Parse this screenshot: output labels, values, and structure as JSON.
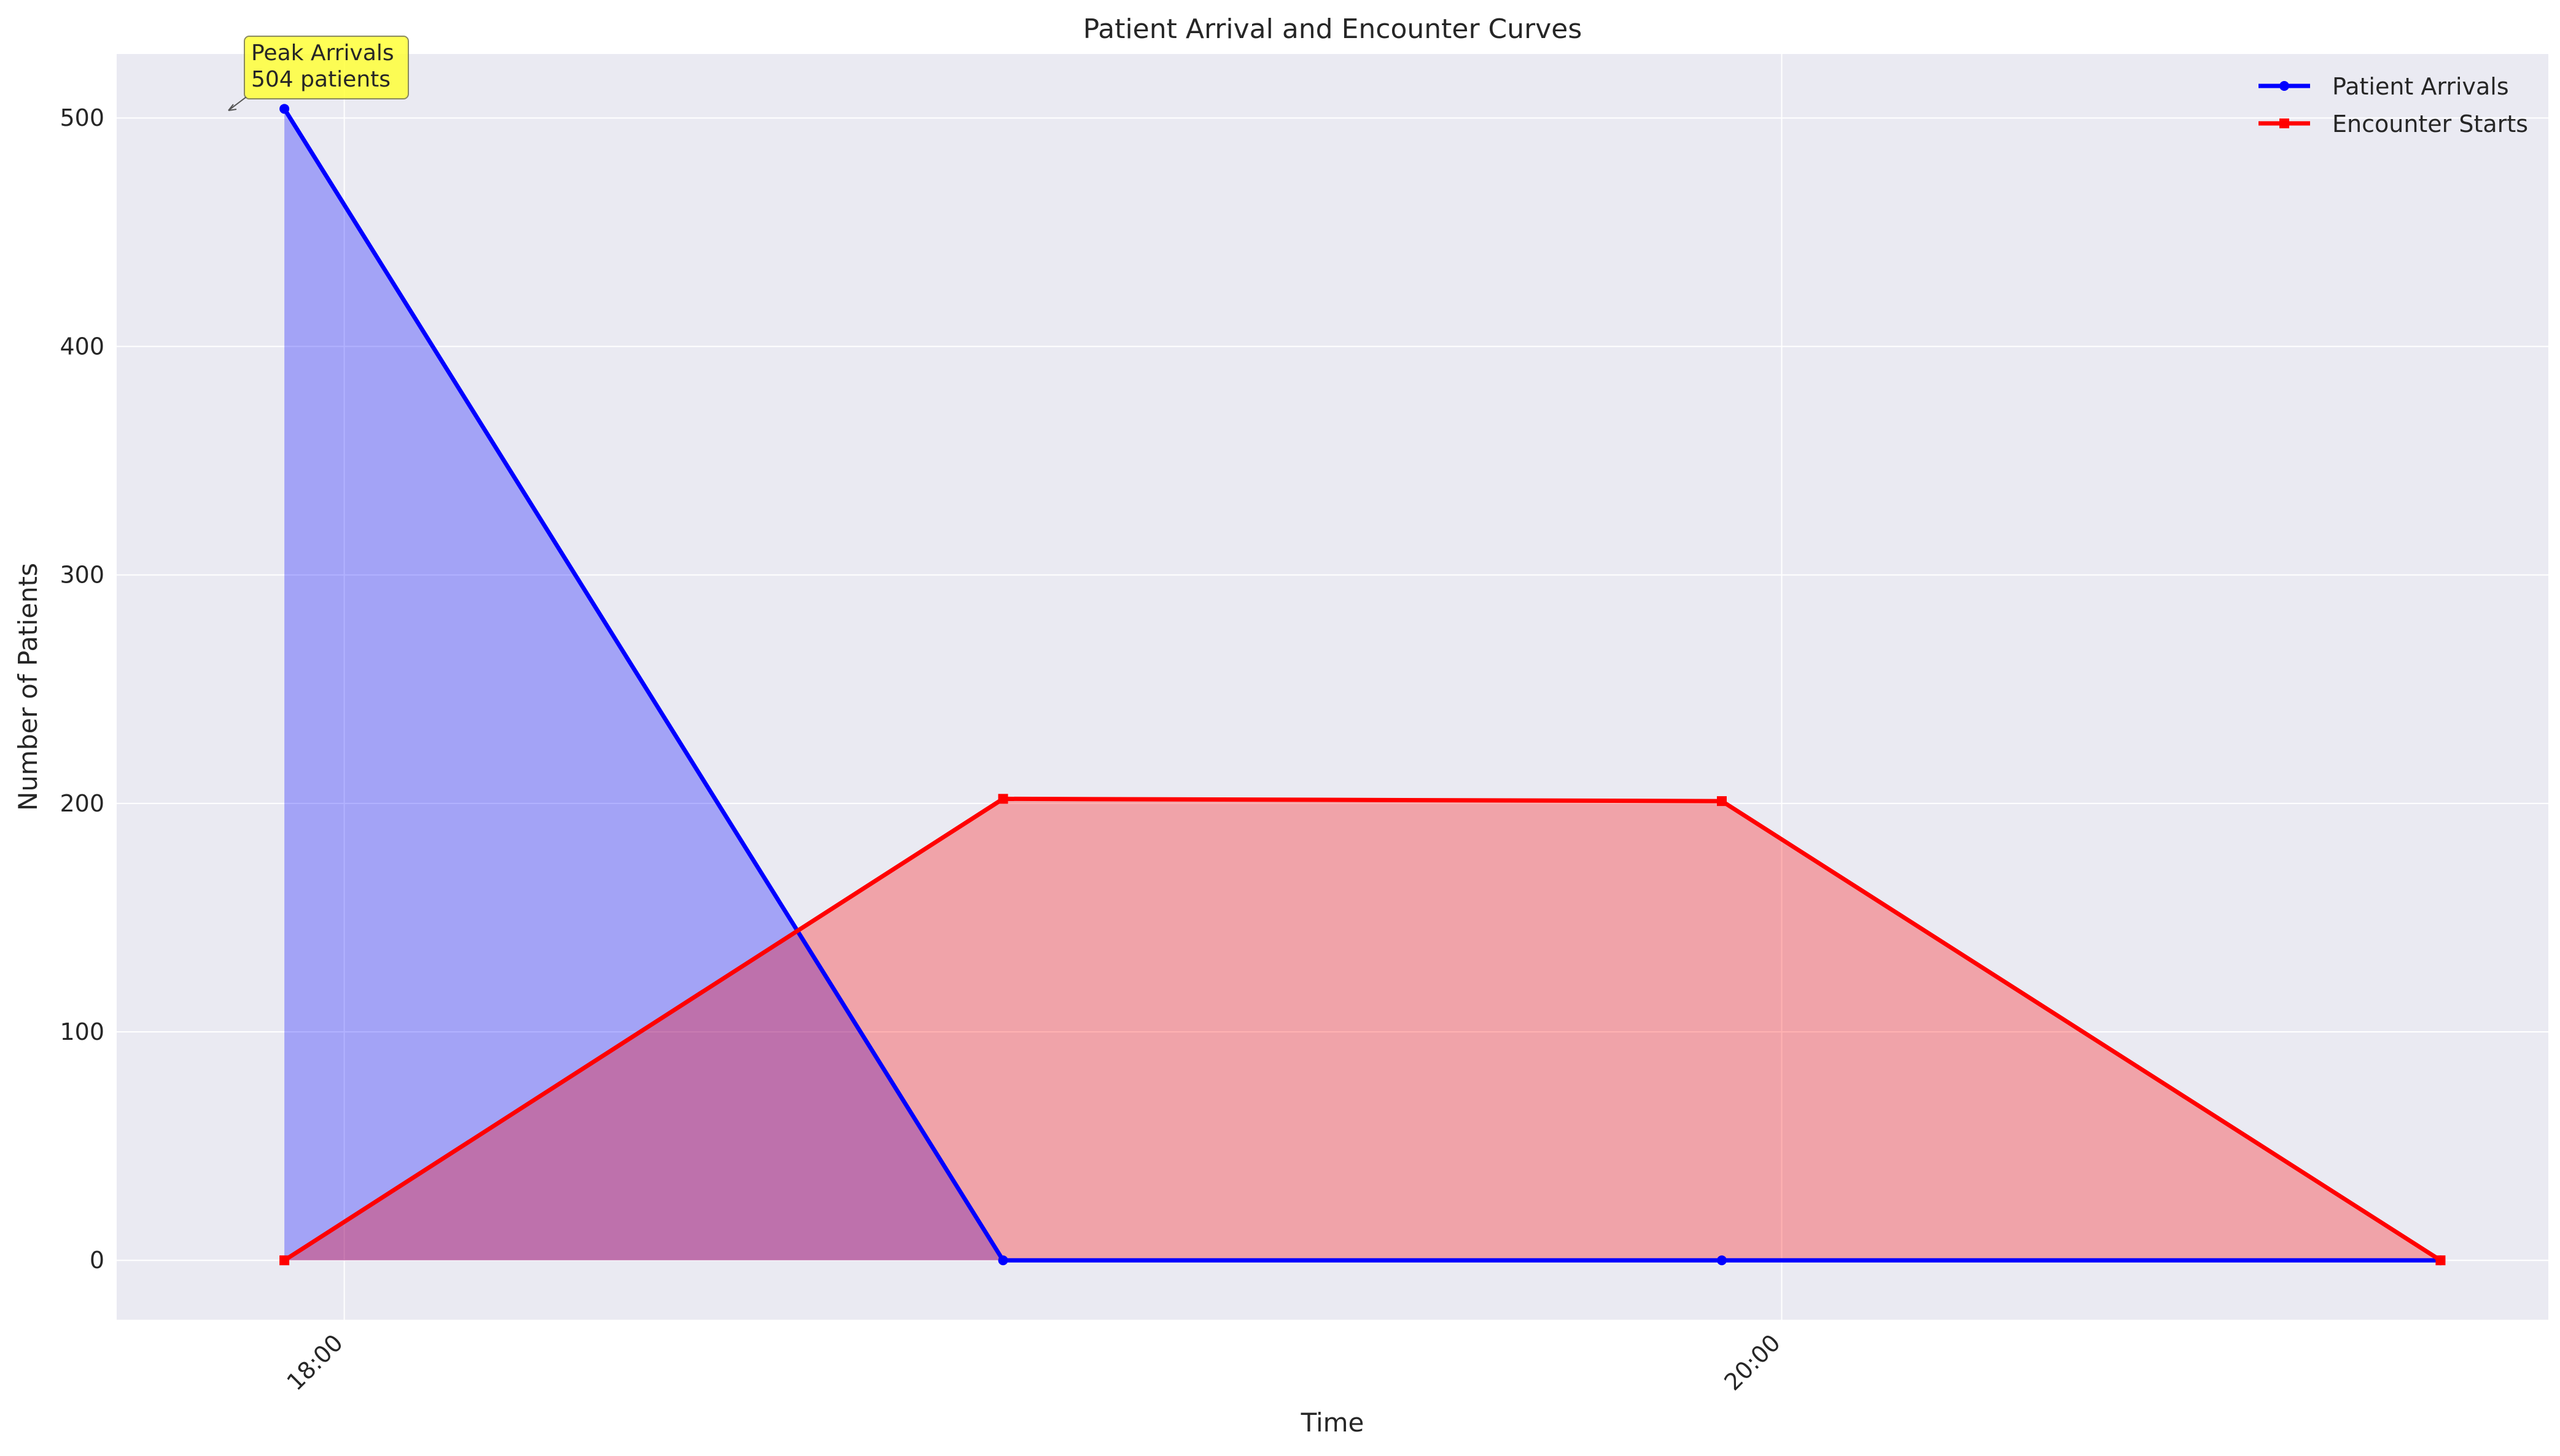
{
  "chart_data": {
    "type": "area",
    "title": "Patient Arrival and Encounter Curves",
    "xlabel": "Time",
    "ylabel": "Number of Patients",
    "x": [
      "17:55",
      "18:55",
      "19:55",
      "20:55"
    ],
    "x_axis": {
      "type": "time",
      "range": [
        "17:41",
        "21:04"
      ],
      "ticks": [
        "18:00",
        "20:00"
      ]
    },
    "ylim": [
      -26,
      528
    ],
    "y_ticks": [
      0,
      100,
      200,
      300,
      400,
      500
    ],
    "grid": true,
    "legend_position": "top-right",
    "series": [
      {
        "name": "Patient Arrivals",
        "values": [
          504,
          0,
          0,
          0
        ],
        "color": "#0000ff",
        "fill": "#a1a3f3",
        "marker": "circle"
      },
      {
        "name": "Encounter Starts",
        "values": [
          0,
          202,
          201,
          0
        ],
        "color": "#ff0000",
        "fill": "#f0a3aa",
        "marker": "square"
      }
    ],
    "annotation": {
      "lines": [
        "Peak Arrivals",
        "504 patients"
      ],
      "x": "17:55",
      "y": 504,
      "background": "#ffff44"
    }
  }
}
